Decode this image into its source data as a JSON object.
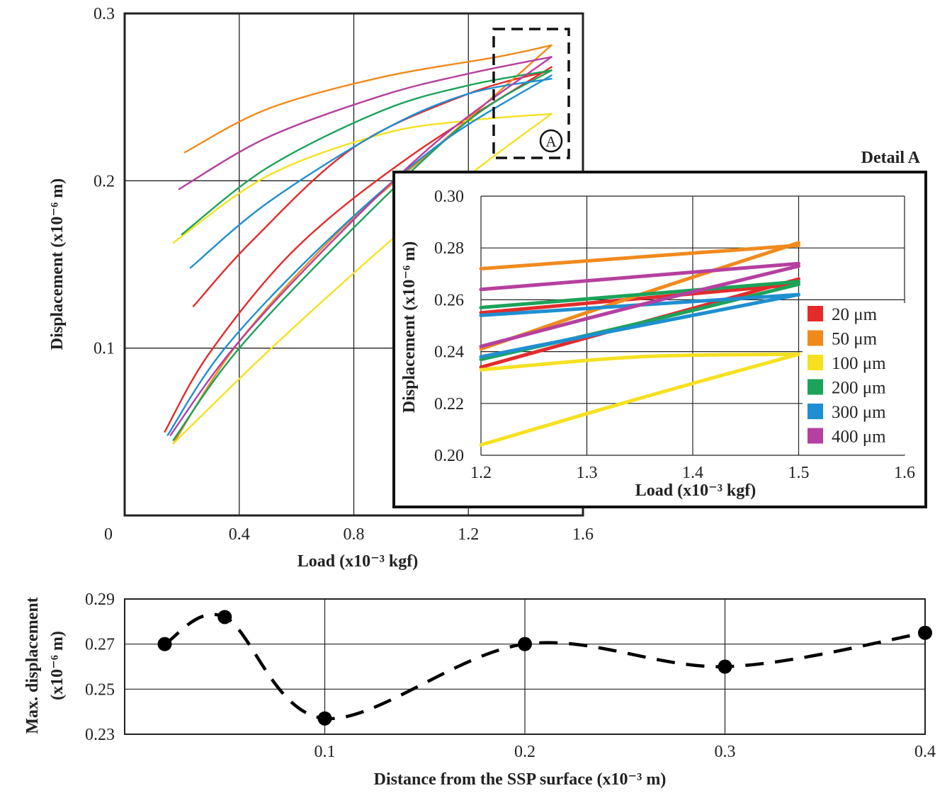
{
  "chart_data": [
    {
      "id": "main",
      "type": "line",
      "title": "",
      "xlabel": "Load (x10⁻³ kgf)",
      "ylabel": "Displacement (x10⁻⁶ m)",
      "xlim": [
        0,
        1.6
      ],
      "ylim": [
        0,
        0.3
      ],
      "x_ticks": [
        0.4,
        0.8,
        1.2,
        1.6
      ],
      "x_tick_labels": [
        "0.4",
        "0.8",
        "1.2",
        "1.6"
      ],
      "origin_label": "0",
      "y_ticks": [
        0.1,
        0.2,
        0.3
      ],
      "y_tick_labels": [
        "0.1",
        "0.2",
        "0.3"
      ],
      "grid": true,
      "annotation": {
        "label": "A",
        "region_x": [
          1.28,
          1.54
        ],
        "region_y": [
          0.213,
          0.292
        ]
      },
      "series": [
        {
          "name": "20 µm",
          "color": "#e32b2b",
          "x": [
            0.24,
            0.45,
            0.8,
            1.2,
            1.49
          ],
          "y": [
            0.125,
            0.165,
            0.22,
            0.252,
            0.266
          ]
        },
        {
          "name": "20 µm",
          "color": "#e32b2b",
          "x": [
            0.14,
            0.3,
            0.6,
            1.0,
            1.49
          ],
          "y": [
            0.05,
            0.098,
            0.16,
            0.215,
            0.268
          ]
        },
        {
          "name": "50 µm",
          "color": "#f08a1d",
          "x": [
            0.21,
            0.5,
            0.9,
            1.3,
            1.49
          ],
          "y": [
            0.217,
            0.243,
            0.262,
            0.274,
            0.281
          ]
        },
        {
          "name": "50 µm",
          "color": "#f08a1d",
          "x": [
            0.17,
            0.4,
            0.75,
            1.1,
            1.49
          ],
          "y": [
            0.043,
            0.104,
            0.17,
            0.222,
            0.281
          ]
        },
        {
          "name": "100 µm",
          "color": "#f5e11f",
          "x": [
            0.17,
            0.5,
            0.9,
            1.2,
            1.49
          ],
          "y": [
            0.163,
            0.203,
            0.228,
            0.236,
            0.24
          ]
        },
        {
          "name": "100 µm",
          "color": "#f5e11f",
          "x": [
            0.17,
            0.5,
            0.9,
            1.2,
            1.49
          ],
          "y": [
            0.043,
            0.098,
            0.16,
            0.203,
            0.24
          ]
        },
        {
          "name": "200 µm",
          "color": "#1ba35a",
          "x": [
            0.2,
            0.5,
            0.9,
            1.2,
            1.49
          ],
          "y": [
            0.168,
            0.208,
            0.242,
            0.257,
            0.266
          ]
        },
        {
          "name": "200 µm",
          "color": "#1ba35a",
          "x": [
            0.17,
            0.4,
            0.8,
            1.2,
            1.49
          ],
          "y": [
            0.045,
            0.1,
            0.172,
            0.236,
            0.266
          ]
        },
        {
          "name": "300 µm",
          "color": "#1e8fd0",
          "x": [
            0.23,
            0.5,
            0.9,
            1.2,
            1.49
          ],
          "y": [
            0.148,
            0.187,
            0.23,
            0.252,
            0.261
          ]
        },
        {
          "name": "300 µm",
          "color": "#1e8fd0",
          "x": [
            0.15,
            0.35,
            0.7,
            1.1,
            1.49
          ],
          "y": [
            0.048,
            0.1,
            0.163,
            0.222,
            0.263
          ]
        },
        {
          "name": "400 µm",
          "color": "#b5409f",
          "x": [
            0.19,
            0.5,
            0.9,
            1.2,
            1.49
          ],
          "y": [
            0.195,
            0.226,
            0.251,
            0.264,
            0.274
          ]
        },
        {
          "name": "400 µm",
          "color": "#b5409f",
          "x": [
            0.16,
            0.38,
            0.72,
            1.1,
            1.49
          ],
          "y": [
            0.048,
            0.1,
            0.163,
            0.225,
            0.274
          ]
        }
      ]
    },
    {
      "id": "detail",
      "type": "line",
      "title": "Detail A",
      "xlabel": "Load (x10⁻³ kgf)",
      "ylabel": "Displacement (x10⁻⁶ m)",
      "xlim": [
        1.2,
        1.6
      ],
      "ylim": [
        0.2,
        0.3
      ],
      "x_ticks": [
        1.2,
        1.3,
        1.4,
        1.5,
        1.6
      ],
      "x_tick_labels": [
        "1.2",
        "1.3",
        "1.4",
        "1.5",
        "1.6"
      ],
      "y_ticks": [
        0.2,
        0.22,
        0.24,
        0.26,
        0.28,
        0.3
      ],
      "y_tick_labels": [
        "0.20",
        "0.22",
        "0.24",
        "0.26",
        "0.28",
        "0.30"
      ],
      "grid": true,
      "legend_position": "right",
      "legend": [
        {
          "label": "20 μm",
          "color": "#e32b2b"
        },
        {
          "label": "50 μm",
          "color": "#f08a1d"
        },
        {
          "label": "100 μm",
          "color": "#f5e11f"
        },
        {
          "label": "200 μm",
          "color": "#1ba35a"
        },
        {
          "label": "300 μm",
          "color": "#1e8fd0"
        },
        {
          "label": "400 μm",
          "color": "#b5409f"
        }
      ],
      "series": [
        {
          "name": "20 µm",
          "color": "#e32b2b",
          "x": [
            1.2,
            1.5
          ],
          "y": [
            0.255,
            0.266
          ]
        },
        {
          "name": "20 µm",
          "color": "#e32b2b",
          "x": [
            1.2,
            1.35,
            1.5
          ],
          "y": [
            0.234,
            0.251,
            0.268
          ]
        },
        {
          "name": "50 µm",
          "color": "#f08a1d",
          "x": [
            1.2,
            1.5
          ],
          "y": [
            0.272,
            0.281
          ]
        },
        {
          "name": "50 µm",
          "color": "#f08a1d",
          "x": [
            1.2,
            1.35,
            1.5
          ],
          "y": [
            0.241,
            0.262,
            0.282
          ]
        },
        {
          "name": "100 µm",
          "color": "#f5e11f",
          "x": [
            1.2,
            1.35,
            1.5
          ],
          "y": [
            0.233,
            0.238,
            0.239
          ]
        },
        {
          "name": "100 µm",
          "color": "#f5e11f",
          "x": [
            1.2,
            1.35,
            1.5
          ],
          "y": [
            0.204,
            0.222,
            0.239
          ]
        },
        {
          "name": "200 µm",
          "color": "#1ba35a",
          "x": [
            1.2,
            1.5
          ],
          "y": [
            0.257,
            0.267
          ]
        },
        {
          "name": "200 µm",
          "color": "#1ba35a",
          "x": [
            1.2,
            1.35,
            1.5
          ],
          "y": [
            0.237,
            0.251,
            0.266
          ]
        },
        {
          "name": "300 µm",
          "color": "#1e8fd0",
          "x": [
            1.2,
            1.5
          ],
          "y": [
            0.254,
            0.262
          ]
        },
        {
          "name": "300 µm",
          "color": "#1e8fd0",
          "x": [
            1.2,
            1.35,
            1.5
          ],
          "y": [
            0.238,
            0.25,
            0.262
          ]
        },
        {
          "name": "400 µm",
          "color": "#b5409f",
          "x": [
            1.2,
            1.5
          ],
          "y": [
            0.264,
            0.274
          ]
        },
        {
          "name": "400 µm",
          "color": "#b5409f",
          "x": [
            1.2,
            1.35,
            1.5
          ],
          "y": [
            0.242,
            0.258,
            0.273
          ]
        }
      ]
    },
    {
      "id": "bottom",
      "type": "line",
      "title": "",
      "xlabel": "Distance from the SSP surface (x10⁻³ m)",
      "ylabel_line1": "Max. displacement",
      "ylabel_line2": "(x10⁻⁶ m)",
      "xlim": [
        0,
        0.4
      ],
      "ylim": [
        0.23,
        0.29
      ],
      "x_ticks": [
        0.1,
        0.2,
        0.3,
        0.4
      ],
      "x_tick_labels": [
        "0.1",
        "0.2",
        "0.3",
        "0.4"
      ],
      "y_ticks": [
        0.23,
        0.25,
        0.27,
        0.29
      ],
      "y_tick_labels": [
        "0.23",
        "0.25",
        "0.27",
        "0.29"
      ],
      "grid": true,
      "line_style": "dashed",
      "series": [
        {
          "name": "Max. displacement",
          "color": "#000000",
          "x": [
            0.02,
            0.05,
            0.1,
            0.2,
            0.3,
            0.4
          ],
          "y": [
            0.27,
            0.282,
            0.237,
            0.27,
            0.26,
            0.275
          ]
        }
      ]
    }
  ]
}
